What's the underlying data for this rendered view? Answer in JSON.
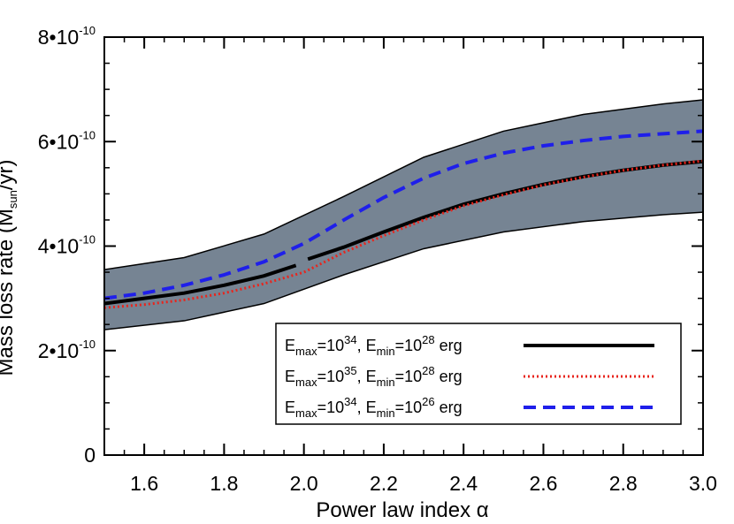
{
  "chart_data": {
    "type": "line",
    "xlabel": "Power law index α",
    "ylabel": "Mass loss rate (M",
    "ylabel_sub": "sun",
    "ylabel_tail": "/yr)",
    "xlim": [
      1.5,
      3.0
    ],
    "ylim": [
      0,
      8e-10
    ],
    "xticks": [
      1.6,
      1.8,
      2.0,
      2.2,
      2.4,
      2.6,
      2.8,
      3.0
    ],
    "xtick_labels": [
      "1.6",
      "1.8",
      "2.0",
      "2.2",
      "2.4",
      "2.6",
      "2.8",
      "3.0"
    ],
    "yticks": [
      0,
      2e-10,
      4e-10,
      6e-10,
      8e-10
    ],
    "ytick_labels": [
      {
        "base": "0",
        "exp": ""
      },
      {
        "base": "2•10",
        "exp": "-10"
      },
      {
        "base": "4•10",
        "exp": "-10"
      },
      {
        "base": "6•10",
        "exp": "-10"
      },
      {
        "base": "8•10",
        "exp": "-10"
      }
    ],
    "band": {
      "color": "#768493",
      "x": [
        1.5,
        1.7,
        1.9,
        2.1,
        2.3,
        2.5,
        2.7,
        2.9,
        3.0
      ],
      "upper": [
        3.55e-10,
        3.78e-10,
        4.23e-10,
        4.95e-10,
        5.7e-10,
        6.2e-10,
        6.52e-10,
        6.72e-10,
        6.8e-10
      ],
      "lower": [
        2.4e-10,
        2.57e-10,
        2.9e-10,
        3.45e-10,
        3.95e-10,
        4.27e-10,
        4.47e-10,
        4.6e-10,
        4.65e-10
      ]
    },
    "series": [
      {
        "legend": {
          "p1": "E",
          "s1": "max",
          "p2": "=10",
          "e2": "34",
          "p3": ", E",
          "s3": "min",
          "p4": "=10",
          "e4": "28",
          "p5": " erg"
        },
        "color": "#000000",
        "style": "solid",
        "segments": [
          {
            "x": [
              1.5,
              1.6,
              1.7,
              1.8,
              1.9,
              1.98
            ],
            "y": [
              2.9e-10,
              3e-10,
              3.1e-10,
              3.25e-10,
              3.43e-10,
              3.63e-10
            ]
          },
          {
            "x": [
              2.01,
              2.1,
              2.2,
              2.3,
              2.4,
              2.5,
              2.6,
              2.7,
              2.8,
              2.9,
              3.0
            ],
            "y": [
              3.75e-10,
              3.98e-10,
              4.27e-10,
              4.55e-10,
              4.8e-10,
              5e-10,
              5.18e-10,
              5.33e-10,
              5.45e-10,
              5.55e-10,
              5.62e-10
            ]
          }
        ]
      },
      {
        "legend": {
          "p1": "E",
          "s1": "max",
          "p2": "=10",
          "e2": "35",
          "p3": ", E",
          "s3": "min",
          "p4": "=10",
          "e4": "28",
          "p5": " erg"
        },
        "color": "#e8251d",
        "style": "dotted",
        "segments": [
          {
            "x": [
              1.5,
              1.6,
              1.7,
              1.8,
              1.9,
              2.0,
              2.1,
              2.2,
              2.3,
              2.4,
              2.5,
              2.6,
              2.7,
              2.8,
              2.9,
              3.0
            ],
            "y": [
              2.82e-10,
              2.88e-10,
              2.97e-10,
              3.1e-10,
              3.28e-10,
              3.5e-10,
              3.88e-10,
              4.2e-10,
              4.5e-10,
              4.77e-10,
              4.98e-10,
              5.17e-10,
              5.32e-10,
              5.45e-10,
              5.55e-10,
              5.63e-10
            ]
          }
        ]
      },
      {
        "legend": {
          "p1": "E",
          "s1": "max",
          "p2": "=10",
          "e2": "34",
          "p3": ", E",
          "s3": "min",
          "p4": "=10",
          "e4": "26",
          "p5": " erg"
        },
        "color": "#1f1fea",
        "style": "dashed",
        "segments": [
          {
            "x": [
              1.5,
              1.6,
              1.7,
              1.8,
              1.9,
              2.0,
              2.1,
              2.2,
              2.3,
              2.4,
              2.5,
              2.6,
              2.7,
              2.8,
              2.9,
              3.0
            ],
            "y": [
              3e-10,
              3.1e-10,
              3.25e-10,
              3.45e-10,
              3.7e-10,
              4.05e-10,
              4.5e-10,
              4.93e-10,
              5.3e-10,
              5.58e-10,
              5.78e-10,
              5.92e-10,
              6.02e-10,
              6.1e-10,
              6.15e-10,
              6.2e-10
            ]
          }
        ]
      }
    ]
  }
}
